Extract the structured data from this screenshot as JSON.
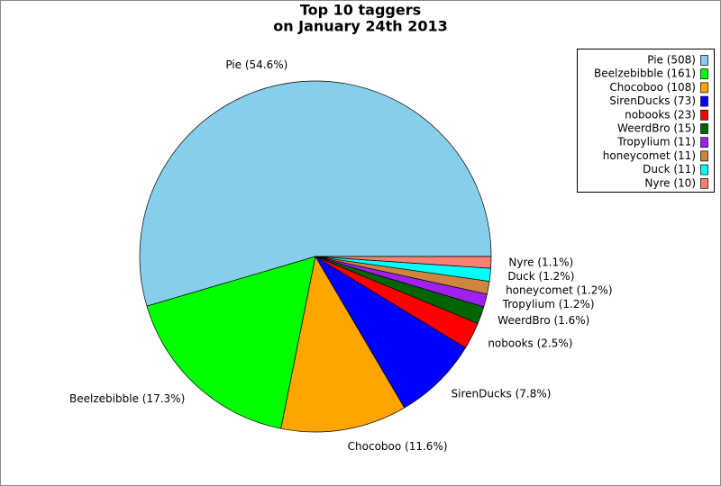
{
  "chart_data": {
    "type": "pie",
    "title": [
      "Top 10 taggers",
      "on January 24th 2013"
    ],
    "categories": [
      "Pie (508)",
      "Beelzebibble (161)",
      "Chocoboo (108)",
      "SirenDucks (73)",
      "nobooks (23)",
      "WeerdBro (15)",
      "Tropylium (11)",
      "honeycomet (11)",
      "Duck (11)",
      "Nyre (10)"
    ],
    "values": [
      508,
      161,
      108,
      73,
      23,
      15,
      11,
      11,
      11,
      10
    ],
    "value_labels": [
      "Pie (54.6%)",
      "Beelzebibble (17.3%)",
      "Chocoboo (11.6%)",
      "SirenDucks (7.8%)",
      "nobooks (2.5%)",
      "WeerdBro (1.6%)",
      "Tropylium (1.2%)",
      "honeycomet (1.2%)",
      "Duck (1.2%)",
      "Nyre (1.1%)"
    ],
    "colors": [
      "#87ceeb",
      "#00ff00",
      "#ffa500",
      "#0000ff",
      "#ff0000",
      "#006400",
      "#a020f0",
      "#cd853f",
      "#00ffff",
      "#fa8072"
    ],
    "legend": "upper right"
  }
}
